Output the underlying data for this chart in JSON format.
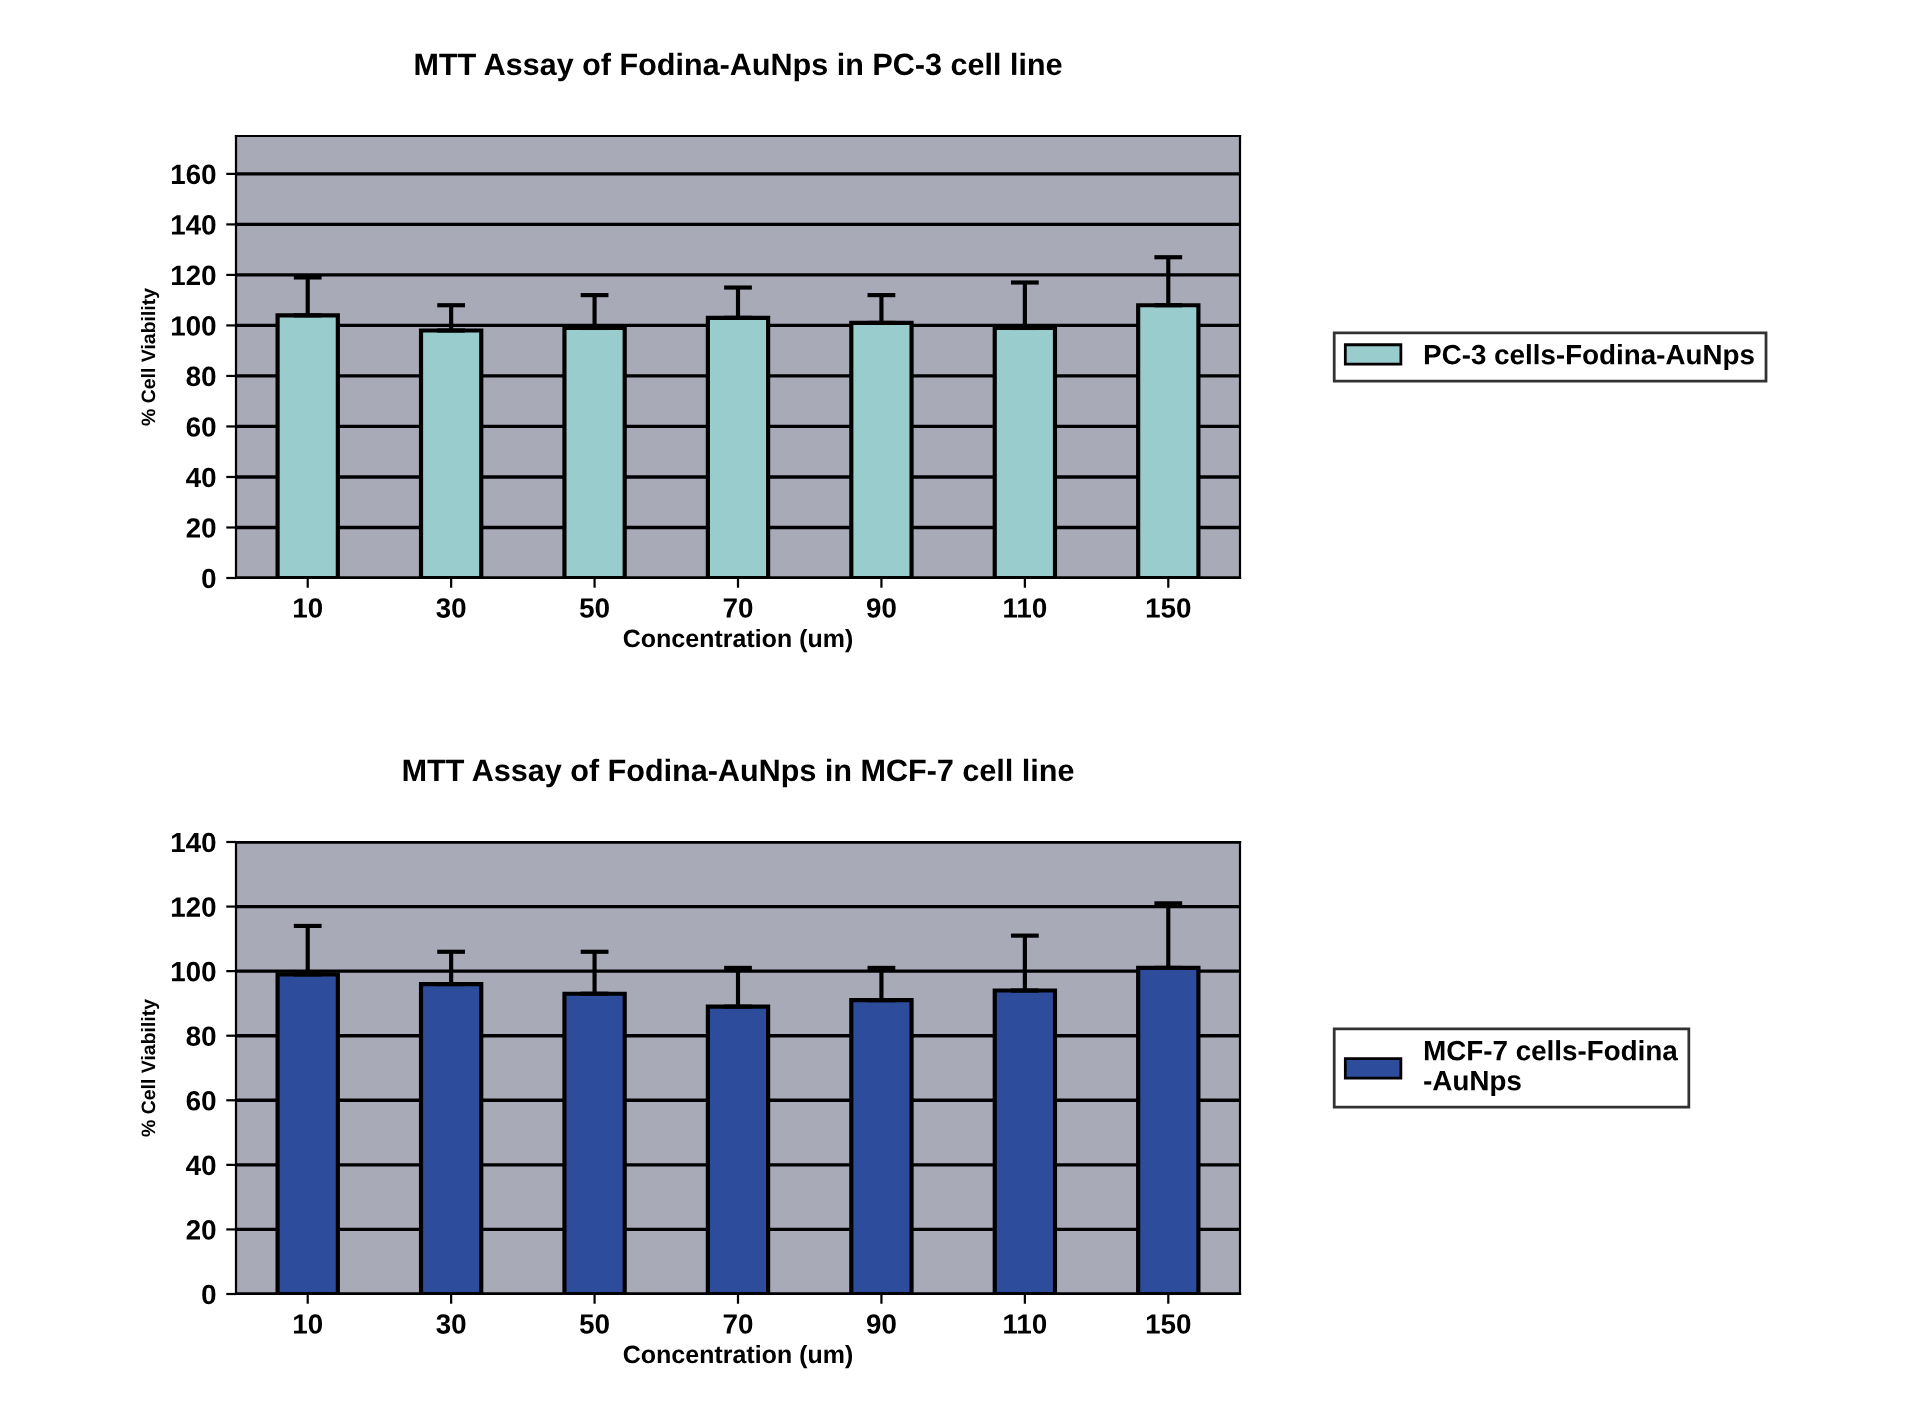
{
  "chart_data": [
    {
      "type": "bar",
      "title": "MTT Assay of Fodina-AuNps in PC-3 cell line",
      "xlabel": "Concentration (um)",
      "ylabel": "% Cell Viability",
      "categories": [
        "10",
        "30",
        "50",
        "70",
        "90",
        "110",
        "150"
      ],
      "series": [
        {
          "name": "PC-3 cells-Fodina-AuNps",
          "color": "#99cccc",
          "values": [
            104,
            98,
            99,
            103,
            101,
            99,
            108
          ],
          "errors": [
            15,
            10,
            13,
            12,
            11,
            18,
            19
          ]
        }
      ],
      "ylim": [
        0,
        175
      ],
      "yticks": [
        0,
        20,
        40,
        60,
        80,
        100,
        120,
        140,
        160
      ],
      "grid": "y",
      "legend": "right"
    },
    {
      "type": "bar",
      "title": "MTT Assay of Fodina-AuNps in MCF-7 cell line",
      "xlabel": "Concentration (um)",
      "ylabel": "% Cell Viability",
      "categories": [
        "10",
        "30",
        "50",
        "70",
        "90",
        "110",
        "150"
      ],
      "series": [
        {
          "name": "MCF-7 cells-Fodina\n-AuNps",
          "color": "#2e4c9c",
          "values": [
            99,
            96,
            93,
            89,
            91,
            94,
            101
          ],
          "errors": [
            15,
            10,
            13,
            12,
            10,
            17,
            20
          ]
        }
      ],
      "ylim": [
        0,
        140
      ],
      "yticks": [
        0,
        20,
        40,
        60,
        80,
        100,
        120,
        140
      ],
      "grid": "y",
      "legend": "right"
    }
  ]
}
